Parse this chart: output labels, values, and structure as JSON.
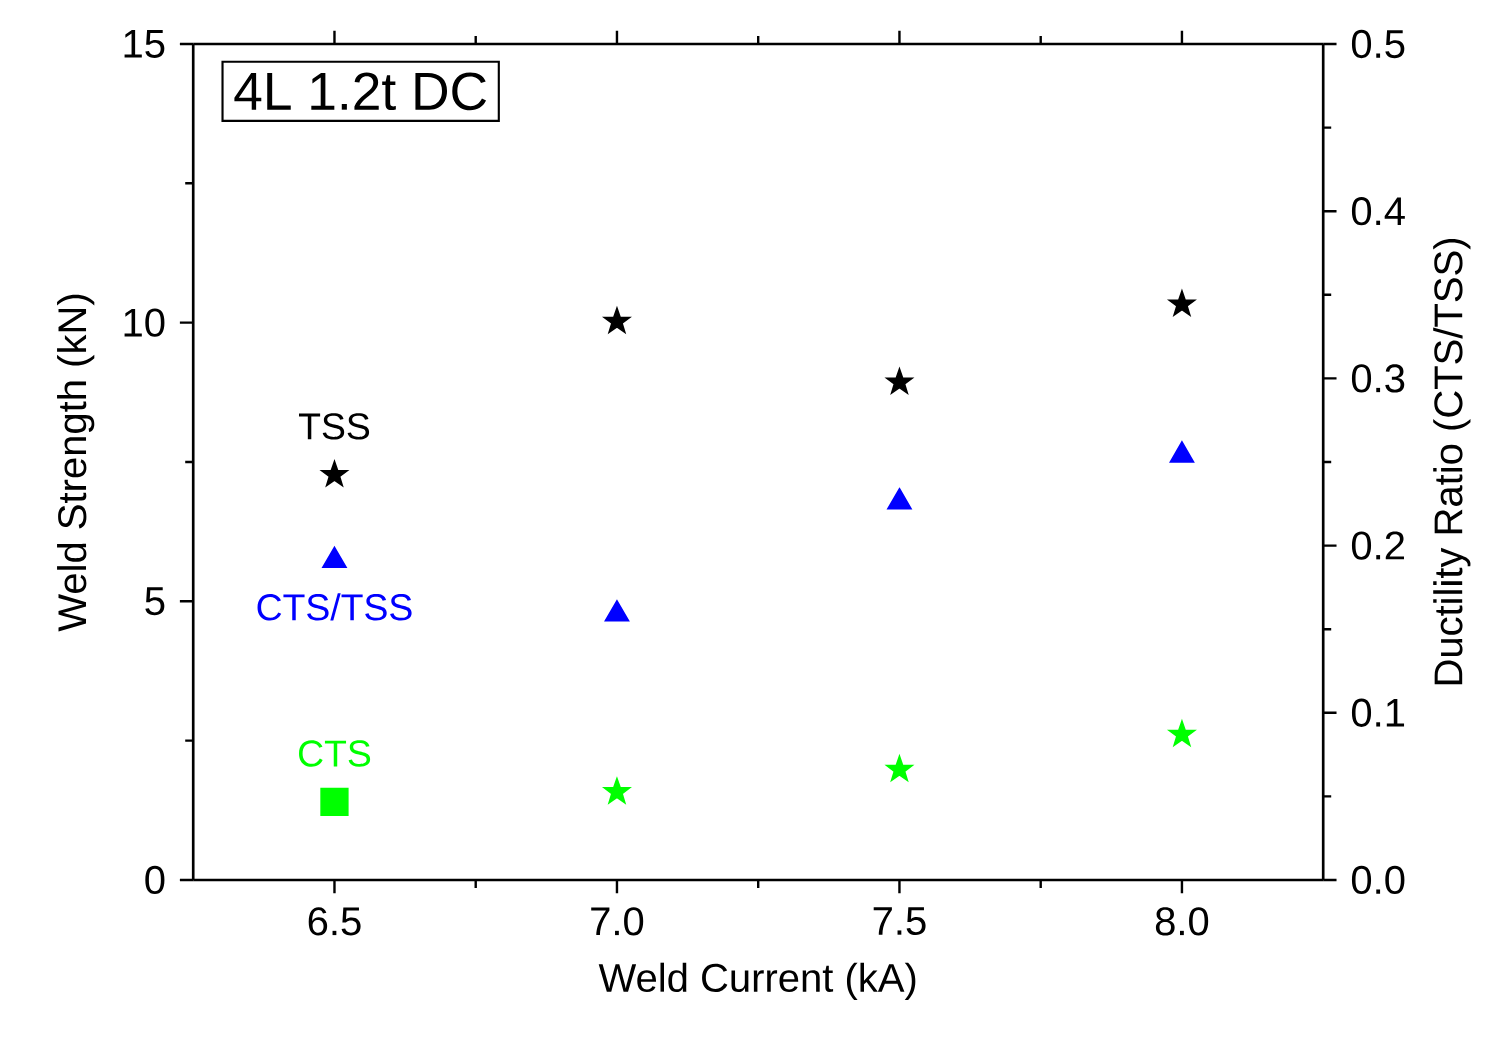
{
  "chart_data": {
    "type": "scatter",
    "xlabel": "Weld Current (kA)",
    "ylabel": "Weld Strength (kN)",
    "y2label": "Ductility Ratio (CTS/TSS)",
    "annotations": [
      "4L 1.2t DC"
    ],
    "x": [
      6.5,
      7.0,
      7.5,
      8.0
    ],
    "xlim": [
      6.25,
      8.25
    ],
    "xticks": [
      6.5,
      {
        "value": 7,
        "label": "7.0"
      },
      7.5,
      {
        "value": 8,
        "label": "8.0"
      }
    ],
    "ylim": [
      0,
      15
    ],
    "yticks": [
      0,
      5,
      10,
      15
    ],
    "y2lim": [
      0,
      0.5
    ],
    "y2ticks": [
      {
        "value": 0,
        "label": "0.0"
      },
      0.1,
      0.2,
      0.3,
      0.4,
      0.5
    ],
    "grid": false,
    "series": [
      {
        "name": "TSS",
        "color": "#000000",
        "marker": "star",
        "values": [
          7.27,
          10.02,
          8.93,
          10.33
        ]
      },
      {
        "name": "CTS/TSS",
        "color": "#0000ff",
        "marker": "triangle",
        "axis": "y2",
        "values": [
          0.191,
          0.159,
          0.226,
          0.254
        ]
      },
      {
        "name": "CTS",
        "color": "#00ff00",
        "marker": "square",
        "values": [
          1.4,
          null,
          null,
          null
        ]
      },
      {
        "color": "#00ff00",
        "marker": "star",
        "values": [
          null,
          1.58,
          1.98,
          2.61
        ]
      }
    ]
  }
}
